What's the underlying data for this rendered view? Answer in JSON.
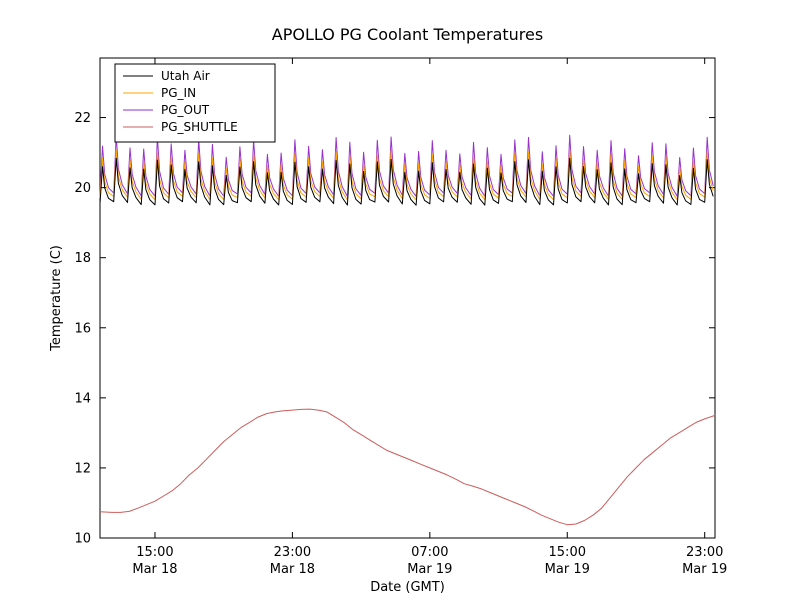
{
  "figure": {
    "background": "#ffffff"
  },
  "chart_data": {
    "type": "line",
    "title": "APOLLO PG Coolant Temperatures",
    "xlabel": "Date (GMT)",
    "ylabel": "Temperature (C)",
    "x_unit": "hours since Mar 18 00:00 GMT",
    "xlim": [
      11.8,
      47.6
    ],
    "ylim": [
      10,
      23.7
    ],
    "yticks": [
      10,
      12,
      14,
      16,
      18,
      20,
      22
    ],
    "xticks": [
      {
        "x": 15,
        "time": "15:00",
        "date": "Mar 18"
      },
      {
        "x": 23,
        "time": "23:00",
        "date": "Mar 18"
      },
      {
        "x": 31,
        "time": "07:00",
        "date": "Mar 19"
      },
      {
        "x": 39,
        "time": "15:00",
        "date": "Mar 19"
      },
      {
        "x": 47,
        "time": "23:00",
        "date": "Mar 19"
      }
    ],
    "grid": false,
    "legend_position": "upper left",
    "series": [
      {
        "name": "Utah Air",
        "color": "#000000",
        "kind": "oscillating",
        "base": 19.55,
        "peak": 20.8,
        "period_h": 0.8
      },
      {
        "name": "PG_IN",
        "color": "#ffa500",
        "kind": "oscillating",
        "base": 19.7,
        "peak": 21.05,
        "period_h": 0.8
      },
      {
        "name": "PG_OUT",
        "color": "#9932cc",
        "kind": "oscillating",
        "base": 19.8,
        "peak": 21.45,
        "period_h": 0.8
      },
      {
        "name": "PG_SHUTTLE",
        "color": "#cd5c5c",
        "kind": "points",
        "points": [
          [
            11.8,
            10.75
          ],
          [
            12.5,
            10.73
          ],
          [
            13.0,
            10.73
          ],
          [
            13.5,
            10.76
          ],
          [
            14.0,
            10.85
          ],
          [
            14.5,
            10.95
          ],
          [
            15.0,
            11.05
          ],
          [
            15.5,
            11.2
          ],
          [
            16.0,
            11.35
          ],
          [
            16.5,
            11.55
          ],
          [
            17.0,
            11.8
          ],
          [
            17.5,
            12.0
          ],
          [
            18.0,
            12.25
          ],
          [
            18.5,
            12.5
          ],
          [
            19.0,
            12.75
          ],
          [
            19.5,
            12.95
          ],
          [
            20.0,
            13.15
          ],
          [
            20.5,
            13.3
          ],
          [
            21.0,
            13.45
          ],
          [
            21.5,
            13.55
          ],
          [
            22.0,
            13.6
          ],
          [
            22.5,
            13.63
          ],
          [
            23.0,
            13.65
          ],
          [
            23.5,
            13.67
          ],
          [
            24.0,
            13.68
          ],
          [
            24.5,
            13.65
          ],
          [
            25.0,
            13.6
          ],
          [
            25.5,
            13.45
          ],
          [
            26.0,
            13.3
          ],
          [
            26.5,
            13.1
          ],
          [
            27.0,
            12.95
          ],
          [
            27.5,
            12.8
          ],
          [
            28.0,
            12.65
          ],
          [
            28.5,
            12.5
          ],
          [
            29.0,
            12.4
          ],
          [
            29.5,
            12.3
          ],
          [
            30.0,
            12.2
          ],
          [
            30.5,
            12.1
          ],
          [
            31.0,
            12.0
          ],
          [
            31.5,
            11.9
          ],
          [
            32.0,
            11.8
          ],
          [
            32.5,
            11.68
          ],
          [
            33.0,
            11.55
          ],
          [
            33.5,
            11.48
          ],
          [
            34.0,
            11.4
          ],
          [
            34.5,
            11.3
          ],
          [
            35.0,
            11.2
          ],
          [
            35.5,
            11.1
          ],
          [
            36.0,
            11.0
          ],
          [
            36.5,
            10.9
          ],
          [
            37.0,
            10.78
          ],
          [
            37.5,
            10.65
          ],
          [
            38.0,
            10.55
          ],
          [
            38.5,
            10.45
          ],
          [
            39.0,
            10.38
          ],
          [
            39.5,
            10.4
          ],
          [
            40.0,
            10.5
          ],
          [
            40.5,
            10.65
          ],
          [
            41.0,
            10.85
          ],
          [
            41.5,
            11.15
          ],
          [
            42.0,
            11.45
          ],
          [
            42.5,
            11.75
          ],
          [
            43.0,
            12.0
          ],
          [
            43.5,
            12.25
          ],
          [
            44.0,
            12.45
          ],
          [
            44.5,
            12.65
          ],
          [
            45.0,
            12.85
          ],
          [
            45.5,
            13.0
          ],
          [
            46.0,
            13.15
          ],
          [
            46.5,
            13.3
          ],
          [
            47.0,
            13.4
          ],
          [
            47.6,
            13.5
          ]
        ]
      }
    ]
  }
}
